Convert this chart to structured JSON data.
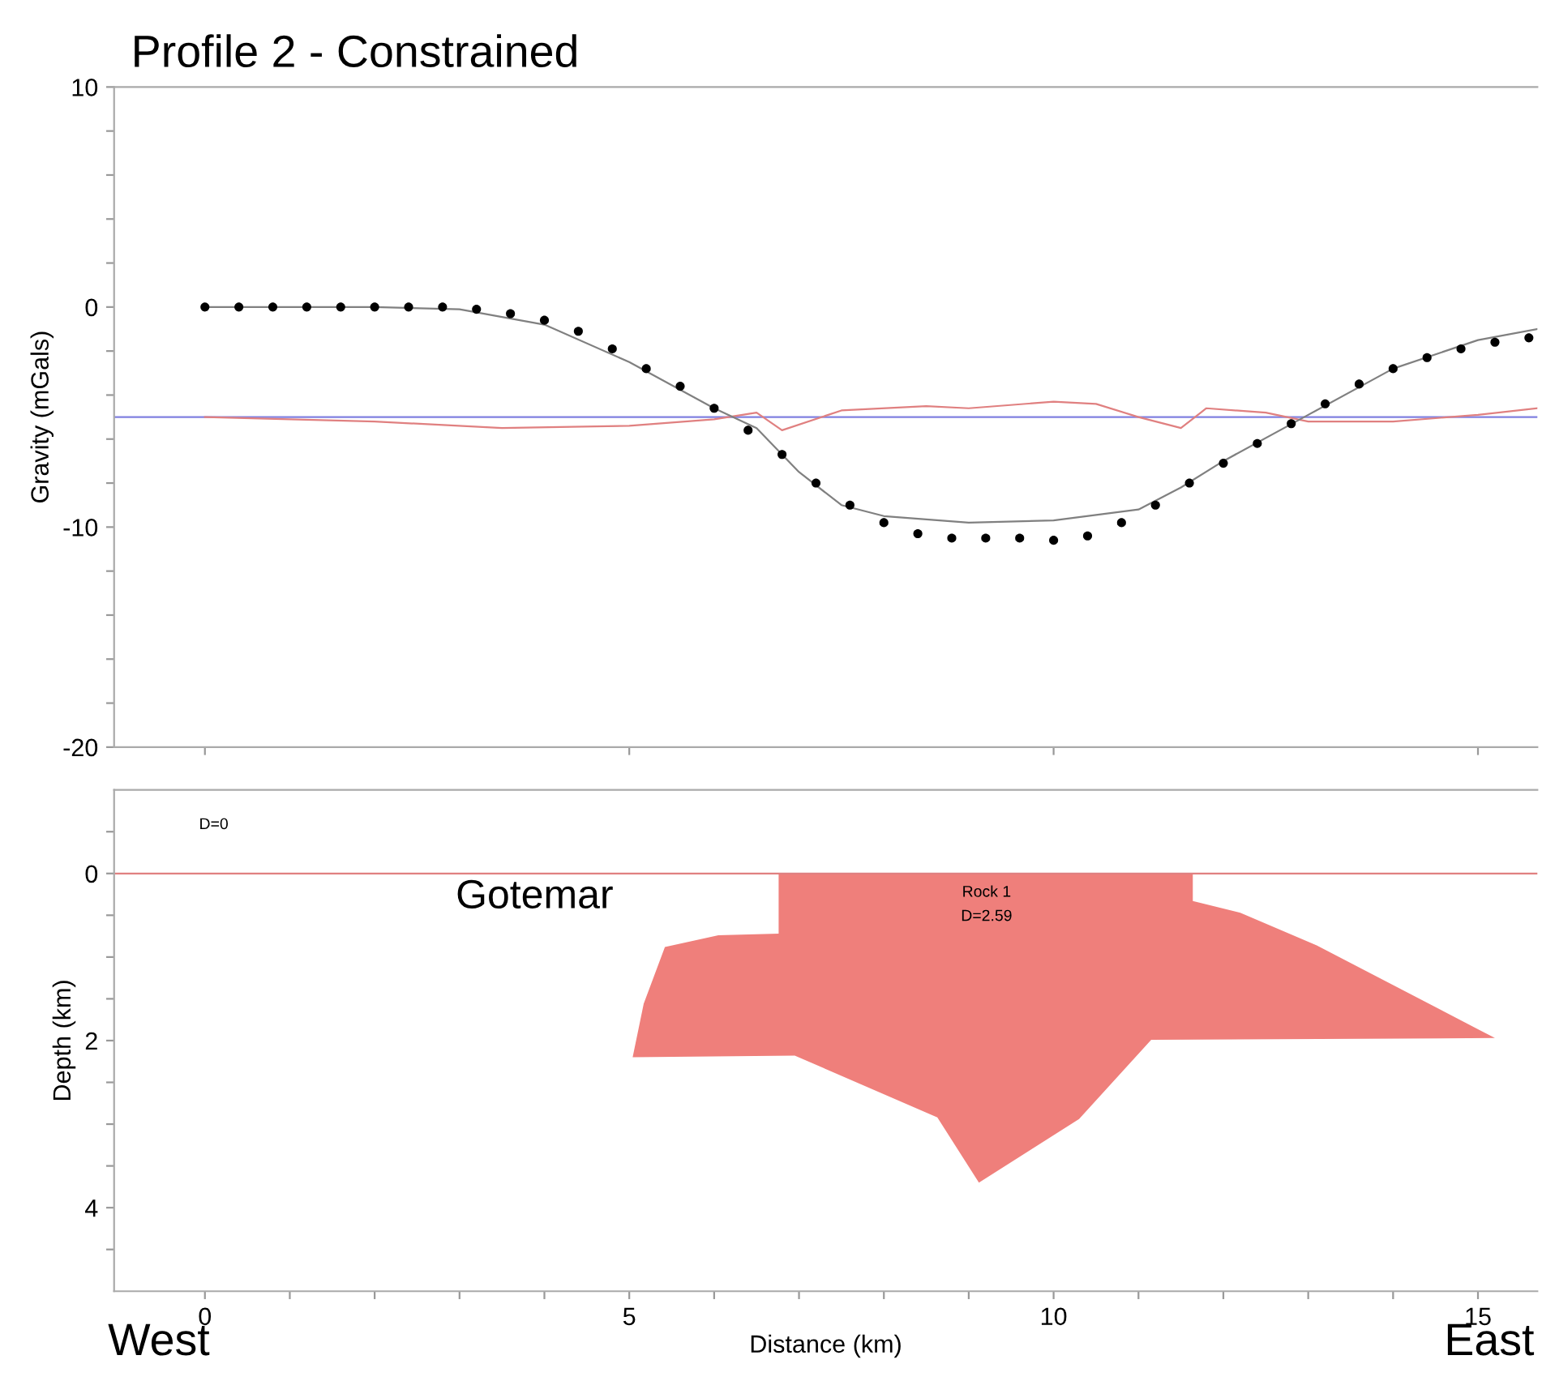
{
  "chart_data": [
    {
      "type": "line",
      "title": "Profile 2 - Constrained",
      "ylabel": "Gravity (mGals)",
      "xlim": [
        -1.07,
        15.7
      ],
      "ylim": [
        -20,
        10
      ],
      "xticks": [
        {
          "value": 0,
          "label": null
        },
        {
          "value": 5,
          "label": null
        },
        {
          "value": 10,
          "label": null
        },
        {
          "value": 15,
          "label": null
        }
      ],
      "yticks": [
        -20,
        {
          "value": -18,
          "label": null
        },
        {
          "value": -16,
          "label": null
        },
        {
          "value": -14,
          "label": null
        },
        {
          "value": -12,
          "label": null
        },
        -10,
        {
          "value": -8,
          "label": null
        },
        {
          "value": -6,
          "label": null
        },
        {
          "value": -4,
          "label": null
        },
        {
          "value": -2,
          "label": null
        },
        0,
        {
          "value": 2,
          "label": null
        },
        {
          "value": 4,
          "label": null
        },
        {
          "value": 6,
          "label": null
        },
        {
          "value": 8,
          "label": null
        },
        10
      ],
      "tick_labels": "y",
      "grid": false,
      "legend": false,
      "ref_lines": [
        {
          "axis": "y",
          "value": -5,
          "color": "#8080e0"
        }
      ],
      "series": [
        {
          "color": "#e08080",
          "x": [
            0,
            2,
            3.5,
            5,
            6,
            6.5,
            6.8,
            7.5,
            8.5,
            9,
            10,
            10.5,
            11,
            11.5,
            11.8,
            12.5,
            13,
            14,
            15,
            15.7
          ],
          "values": [
            -5,
            -5.2,
            -5.5,
            -5.4,
            -5.1,
            -4.8,
            -5.6,
            -4.7,
            -4.5,
            -4.6,
            -4.3,
            -4.4,
            -5.0,
            -5.5,
            -4.6,
            -4.8,
            -5.2,
            -5.2,
            -4.9,
            -4.6
          ]
        },
        {
          "color": "#808080",
          "x": [
            0,
            2,
            3,
            4,
            5,
            6,
            6.5,
            7,
            7.5,
            8,
            9,
            10,
            11,
            11.5,
            12,
            13,
            14,
            15,
            15.7
          ],
          "values": [
            0,
            0,
            -0.1,
            -0.8,
            -2.5,
            -4.6,
            -5.5,
            -7.5,
            -9.0,
            -9.5,
            -9.8,
            -9.7,
            -9.2,
            -8.2,
            -7.0,
            -4.9,
            -2.8,
            -1.5,
            -1.0
          ]
        },
        {
          "type": "scatter",
          "color": "#000000",
          "marker": "circle",
          "x": [
            0,
            0.4,
            0.8,
            1.2,
            1.6,
            2.0,
            2.4,
            2.8,
            3.2,
            3.6,
            4.0,
            4.4,
            4.8,
            5.2,
            5.6,
            6.0,
            6.4,
            6.8,
            7.2,
            7.6,
            8.0,
            8.4,
            8.8,
            9.2,
            9.6,
            10.0,
            10.4,
            10.8,
            11.2,
            11.6,
            12.0,
            12.4,
            12.8,
            13.2,
            13.6,
            14.0,
            14.4,
            14.8,
            15.2,
            15.6
          ],
          "values": [
            0,
            0,
            0,
            0,
            0,
            0,
            0,
            0,
            -0.1,
            -0.3,
            -0.6,
            -1.1,
            -1.9,
            -2.8,
            -3.6,
            -4.6,
            -5.6,
            -6.7,
            -8.0,
            -9.0,
            -9.8,
            -10.3,
            -10.5,
            -10.5,
            -10.5,
            -10.6,
            -10.4,
            -9.8,
            -9.0,
            -8.0,
            -7.1,
            -6.2,
            -5.3,
            -4.4,
            -3.5,
            -2.8,
            -2.3,
            -1.9,
            -1.6,
            -1.4
          ]
        }
      ]
    },
    {
      "type": "area",
      "xlabel": "Distance (km)",
      "ylabel": "Depth (km)",
      "xlim": [
        -1.07,
        15.7
      ],
      "ylim": [
        5,
        -1
      ],
      "xticks": [
        0,
        {
          "value": 1,
          "label": null
        },
        {
          "value": 2,
          "label": null
        },
        {
          "value": 3,
          "label": null
        },
        {
          "value": 4,
          "label": null
        },
        5,
        {
          "value": 6,
          "label": null
        },
        {
          "value": 7,
          "label": null
        },
        {
          "value": 8,
          "label": null
        },
        {
          "value": 9,
          "label": null
        },
        10,
        {
          "value": 11,
          "label": null
        },
        {
          "value": 12,
          "label": null
        },
        {
          "value": 13,
          "label": null
        },
        {
          "value": 14,
          "label": null
        },
        15
      ],
      "yticks": [
        {
          "value": -0.5,
          "label": null
        },
        0,
        {
          "value": 0.5,
          "label": null
        },
        {
          "value": 1,
          "label": null
        },
        {
          "value": 1.5,
          "label": null
        },
        2,
        {
          "value": 2.5,
          "label": null
        },
        {
          "value": 3,
          "label": null
        },
        {
          "value": 3.5,
          "label": null
        },
        4,
        {
          "value": 4.5,
          "label": null
        }
      ],
      "grid": false,
      "legend": false,
      "ref_lines": [
        {
          "axis": "y",
          "value": 0,
          "color": "#e08080"
        }
      ],
      "series": [
        {
          "color": "#ef7f7b",
          "x": [
            6.76,
            11.64,
            11.64,
            12.2,
            13.1,
            15.2,
            11.15,
            10.3,
            9.12,
            8.63,
            6.95,
            5.04,
            5.17,
            5.42,
            6.05,
            6.76
          ],
          "values": [
            0,
            0,
            0.33,
            0.47,
            0.86,
            1.97,
            1.99,
            2.94,
            3.7,
            2.92,
            2.18,
            2.2,
            1.56,
            0.88,
            0.74,
            0.72
          ]
        }
      ],
      "annotations": [
        "D=0",
        "Rock 1",
        "D=2.59",
        "Gotemar",
        "West",
        "East"
      ]
    }
  ]
}
